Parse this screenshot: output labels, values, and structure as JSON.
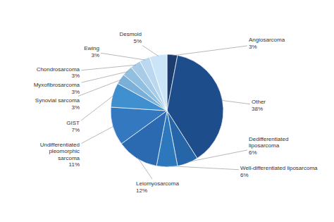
{
  "chart_data": {
    "type": "pie",
    "categories": [
      "Angiosarcoma",
      "Other",
      "Dedifferentiated\nliposarcoma",
      "Well-differentiated liposarcoma",
      "Leiomyosarcoma",
      "Undifferentiated\npleomorphic\nsarcoma",
      "GIST",
      "Synovial sarcoma",
      "Myxofibrosarcoma",
      "Chondrosarcoma",
      "Ewing",
      "Desmoid"
    ],
    "values": [
      3,
      38,
      6,
      6,
      12,
      11,
      7,
      3,
      3,
      3,
      3,
      5
    ],
    "value_labels": [
      "3%",
      "38%",
      "6%",
      "6%",
      "12%",
      "11%",
      "7%",
      "3%",
      "3%",
      "3%",
      "3%",
      "5%"
    ],
    "colors": [
      "#1c3d6e",
      "#1e4d8c",
      "#2565a8",
      "#2d78bc",
      "#2b6ab0",
      "#3478c0",
      "#4090d0",
      "#7ab0d8",
      "#90bfe0",
      "#a8cce8",
      "#bcd8f0",
      "#cce4f8"
    ],
    "data_labels": true
  }
}
